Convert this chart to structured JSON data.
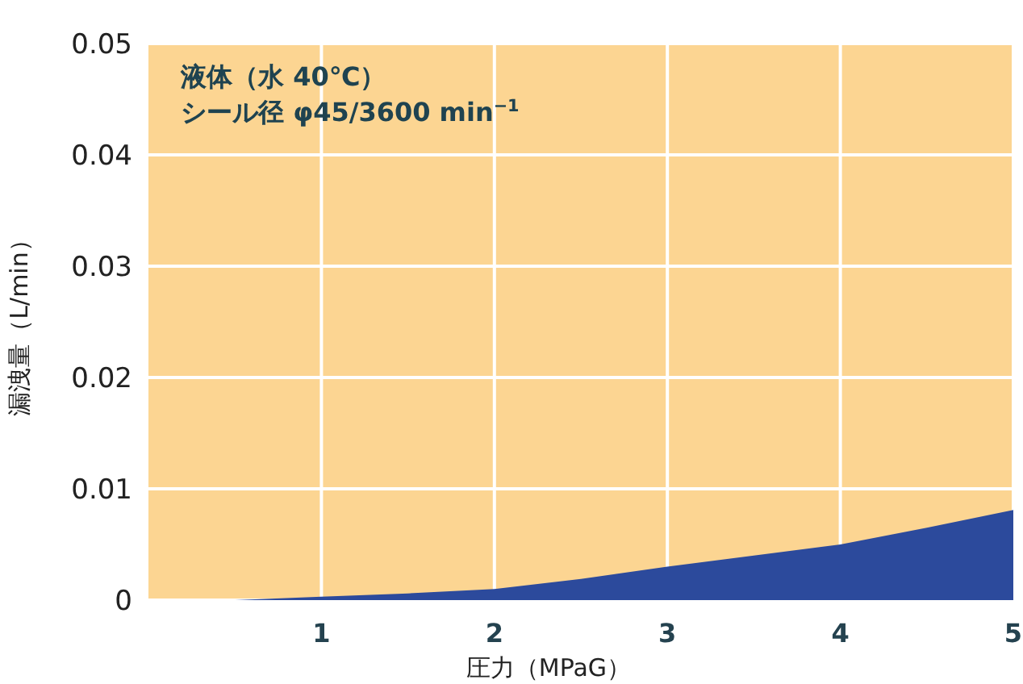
{
  "chart_data": {
    "type": "area",
    "xlabel": "圧力（MPaG）",
    "ylabel": "漏洩量（L/min）",
    "x": [
      0.5,
      1,
      1.5,
      2,
      2.5,
      3,
      3.5,
      4,
      4.5,
      5
    ],
    "series": [
      {
        "color": "#2c4a9c",
        "values": [
          0,
          0.0003,
          0.0006,
          0.001,
          0.0019,
          0.003,
          0.004,
          0.005,
          0.0065,
          0.0081
        ]
      }
    ],
    "xlim": [
      0,
      5
    ],
    "ylim": [
      0,
      0.05
    ],
    "xticks": [
      1,
      2,
      3,
      4,
      5
    ],
    "yticks": [
      0,
      0.01,
      0.02,
      0.03,
      0.04,
      0.05
    ],
    "grid": true,
    "annotations": [
      "液体（水 40℃）",
      "シール径 φ45/3600 min$^{−1}$"
    ]
  }
}
